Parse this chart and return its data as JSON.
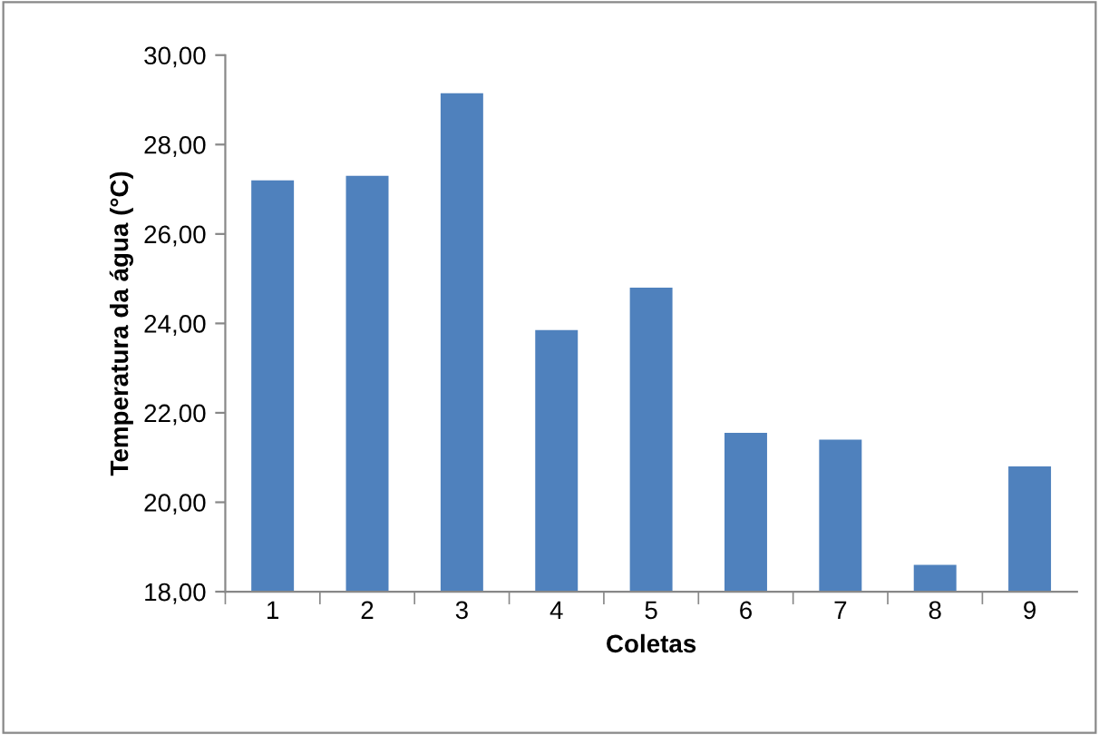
{
  "chart_data": {
    "type": "bar",
    "xlabel": "Coletas",
    "ylabel": "Temperatura da água (°C)",
    "categories": [
      "1",
      "2",
      "3",
      "4",
      "5",
      "6",
      "7",
      "8",
      "9"
    ],
    "values": [
      27.2,
      27.3,
      29.15,
      23.85,
      24.8,
      21.55,
      21.4,
      18.6,
      20.8
    ],
    "color": "#4f81bd",
    "ylim": [
      18,
      30
    ],
    "yticks": [
      {
        "value": 18,
        "label": "18,00"
      },
      {
        "value": 20,
        "label": "20,00"
      },
      {
        "value": 22,
        "label": "22,00"
      },
      {
        "value": 24,
        "label": "24,00"
      },
      {
        "value": 26,
        "label": "26,00"
      },
      {
        "value": 28,
        "label": "28,00"
      },
      {
        "value": 30,
        "label": "30,00"
      }
    ],
    "grid": false,
    "legend": false
  }
}
